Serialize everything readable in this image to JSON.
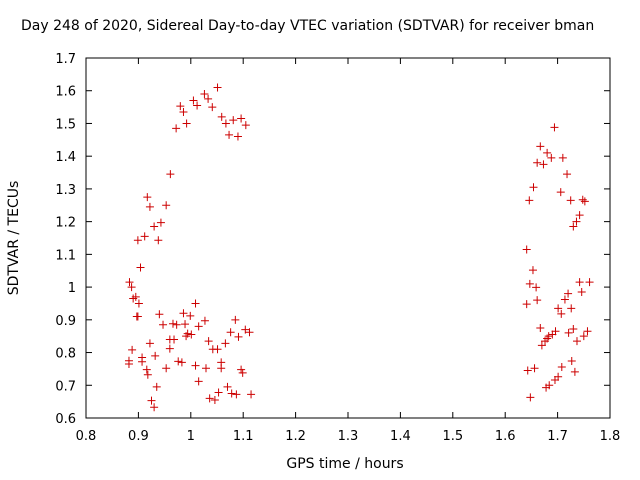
{
  "chart_data": {
    "type": "scatter",
    "title": "Day 248 of 2020, Sidereal Day-to-day VTEC variation (SDTVAR) for receiver bman",
    "xlabel": "GPS time / hours",
    "ylabel": "SDTVAR / TECUs",
    "xlim": [
      0.8,
      1.8
    ],
    "ylim": [
      0.6,
      1.7
    ],
    "xticks": [
      "0.8",
      "0.9",
      "1",
      "1.1",
      "1.2",
      "1.3",
      "1.4",
      "1.5",
      "1.6",
      "1.7",
      "1.8"
    ],
    "yticks": [
      "0.6",
      "0.7",
      "0.8",
      "0.9",
      "1",
      "1.1",
      "1.2",
      "1.3",
      "1.4",
      "1.5",
      "1.6",
      "1.7"
    ],
    "marker": "+",
    "color": "#cc0000",
    "grid": false,
    "series": [
      {
        "name": "SDTVAR",
        "points": [
          [
            0.883,
            1.015
          ],
          [
            0.887,
            1.0
          ],
          [
            0.89,
            0.965
          ],
          [
            0.895,
            0.97
          ],
          [
            0.897,
            0.91
          ],
          [
            0.901,
            0.95
          ],
          [
            0.904,
            1.06
          ],
          [
            0.899,
            1.143
          ],
          [
            0.912,
            1.155
          ],
          [
            0.917,
            1.275
          ],
          [
            0.922,
            1.245
          ],
          [
            0.93,
            1.185
          ],
          [
            0.938,
            1.143
          ],
          [
            0.943,
            1.197
          ],
          [
            0.953,
            1.25
          ],
          [
            0.961,
            1.345
          ],
          [
            0.972,
            1.485
          ],
          [
            0.98,
            1.553
          ],
          [
            0.986,
            1.535
          ],
          [
            0.992,
            1.5
          ],
          [
            1.005,
            1.57
          ],
          [
            1.012,
            1.555
          ],
          [
            1.026,
            1.59
          ],
          [
            1.033,
            1.575
          ],
          [
            1.041,
            1.55
          ],
          [
            1.051,
            1.61
          ],
          [
            1.059,
            1.52
          ],
          [
            1.067,
            1.5
          ],
          [
            1.073,
            1.465
          ],
          [
            1.081,
            1.51
          ],
          [
            1.09,
            1.46
          ],
          [
            1.096,
            1.515
          ],
          [
            1.105,
            1.495
          ],
          [
            0.882,
            0.775
          ],
          [
            0.882,
            0.765
          ],
          [
            0.888,
            0.808
          ],
          [
            0.899,
            0.91
          ],
          [
            0.907,
            0.785
          ],
          [
            0.907,
            0.772
          ],
          [
            0.916,
            0.748
          ],
          [
            0.918,
            0.732
          ],
          [
            0.922,
            0.828
          ],
          [
            0.925,
            0.653
          ],
          [
            0.93,
            0.633
          ],
          [
            0.932,
            0.79
          ],
          [
            0.935,
            0.695
          ],
          [
            0.94,
            0.917
          ],
          [
            0.947,
            0.885
          ],
          [
            0.953,
            0.752
          ],
          [
            0.96,
            0.84
          ],
          [
            0.96,
            0.812
          ],
          [
            0.966,
            0.888
          ],
          [
            0.968,
            0.84
          ],
          [
            0.973,
            0.885
          ],
          [
            0.976,
            0.773
          ],
          [
            0.983,
            0.77
          ],
          [
            0.986,
            0.92
          ],
          [
            0.989,
            0.887
          ],
          [
            0.991,
            0.85
          ],
          [
            0.994,
            0.858
          ],
          [
            0.999,
            0.912
          ],
          [
            1.001,
            0.855
          ],
          [
            1.009,
            0.95
          ],
          [
            1.009,
            0.76
          ],
          [
            1.015,
            0.88
          ],
          [
            1.015,
            0.712
          ],
          [
            1.027,
            0.897
          ],
          [
            1.029,
            0.752
          ],
          [
            1.034,
            0.835
          ],
          [
            1.036,
            0.66
          ],
          [
            1.042,
            0.81
          ],
          [
            1.046,
            0.655
          ],
          [
            1.051,
            0.81
          ],
          [
            1.053,
            0.678
          ],
          [
            1.058,
            0.77
          ],
          [
            1.058,
            0.752
          ],
          [
            1.066,
            0.828
          ],
          [
            1.07,
            0.695
          ],
          [
            1.076,
            0.862
          ],
          [
            1.078,
            0.675
          ],
          [
            1.085,
            0.9
          ],
          [
            1.087,
            0.672
          ],
          [
            1.091,
            0.848
          ],
          [
            1.096,
            0.748
          ],
          [
            1.099,
            0.738
          ],
          [
            1.104,
            0.87
          ],
          [
            1.112,
            0.862
          ],
          [
            1.115,
            0.672
          ],
          [
            1.641,
            1.115
          ],
          [
            1.646,
            1.265
          ],
          [
            1.654,
            1.305
          ],
          [
            1.661,
            1.38
          ],
          [
            1.667,
            1.43
          ],
          [
            1.673,
            1.375
          ],
          [
            1.68,
            1.41
          ],
          [
            1.688,
            1.395
          ],
          [
            1.694,
            1.488
          ],
          [
            1.706,
            1.29
          ],
          [
            1.71,
            1.395
          ],
          [
            1.718,
            1.345
          ],
          [
            1.725,
            1.265
          ],
          [
            1.73,
            1.185
          ],
          [
            1.736,
            1.2
          ],
          [
            1.742,
            1.22
          ],
          [
            1.748,
            1.267
          ],
          [
            1.752,
            1.262
          ],
          [
            1.641,
            0.948
          ],
          [
            1.647,
            1.01
          ],
          [
            1.653,
            1.052
          ],
          [
            1.659,
            0.999
          ],
          [
            1.661,
            0.96
          ],
          [
            1.667,
            0.875
          ],
          [
            1.67,
            0.822
          ],
          [
            1.676,
            0.835
          ],
          [
            1.68,
            0.843
          ],
          [
            1.683,
            0.85
          ],
          [
            1.69,
            0.855
          ],
          [
            1.696,
            0.865
          ],
          [
            1.701,
            0.935
          ],
          [
            1.707,
            0.918
          ],
          [
            1.714,
            0.962
          ],
          [
            1.72,
            0.98
          ],
          [
            1.726,
            0.935
          ],
          [
            1.73,
            0.872
          ],
          [
            1.737,
            0.835
          ],
          [
            1.742,
            1.015
          ],
          [
            1.746,
            0.985
          ],
          [
            1.75,
            0.85
          ],
          [
            1.757,
            0.865
          ],
          [
            1.761,
            1.015
          ],
          [
            1.643,
            0.745
          ],
          [
            1.648,
            0.663
          ],
          [
            1.656,
            0.752
          ],
          [
            1.678,
            0.693
          ],
          [
            1.684,
            0.7
          ],
          [
            1.695,
            0.716
          ],
          [
            1.701,
            0.726
          ],
          [
            1.708,
            0.756
          ],
          [
            1.721,
            0.86
          ],
          [
            1.727,
            0.774
          ],
          [
            1.733,
            0.741
          ]
        ]
      }
    ]
  }
}
